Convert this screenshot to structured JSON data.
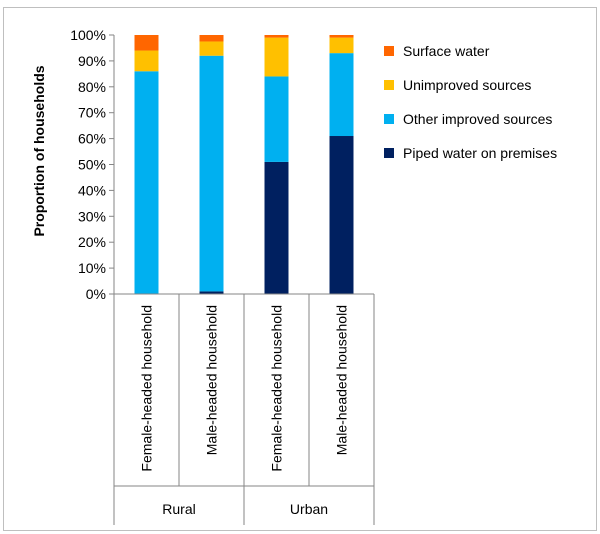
{
  "chart_data": {
    "type": "bar",
    "stacked": true,
    "title": "",
    "ylabel": "Proportion of households",
    "xlabel": "",
    "ylim": [
      0,
      100
    ],
    "y_ticks": [
      "0%",
      "10%",
      "20%",
      "30%",
      "40%",
      "50%",
      "60%",
      "70%",
      "80%",
      "90%",
      "100%"
    ],
    "grid": false,
    "legend_position": "right",
    "categories": [
      "Female-headed household",
      "Male-headed household",
      "Female-headed household",
      "Male-headed household"
    ],
    "groups": [
      {
        "label": "Rural",
        "categories": [
          "Female-headed household",
          "Male-headed household"
        ]
      },
      {
        "label": "Urban",
        "categories": [
          "Female-headed household",
          "Male-headed household"
        ]
      }
    ],
    "series": [
      {
        "name": "Piped water on premises",
        "color": "#002060",
        "values": [
          0,
          1,
          51,
          61
        ]
      },
      {
        "name": "Other improved sources",
        "color": "#00B0F0",
        "values": [
          86,
          91,
          33,
          32
        ]
      },
      {
        "name": "Unimproved sources",
        "color": "#FFC000",
        "values": [
          8,
          5.5,
          15,
          6
        ]
      },
      {
        "name": "Surface water",
        "color": "#FF6600",
        "values": [
          6,
          2.5,
          1,
          1
        ]
      }
    ],
    "legend_order": [
      "Surface water",
      "Unimproved sources",
      "Other improved sources",
      "Piped water on premises"
    ]
  }
}
